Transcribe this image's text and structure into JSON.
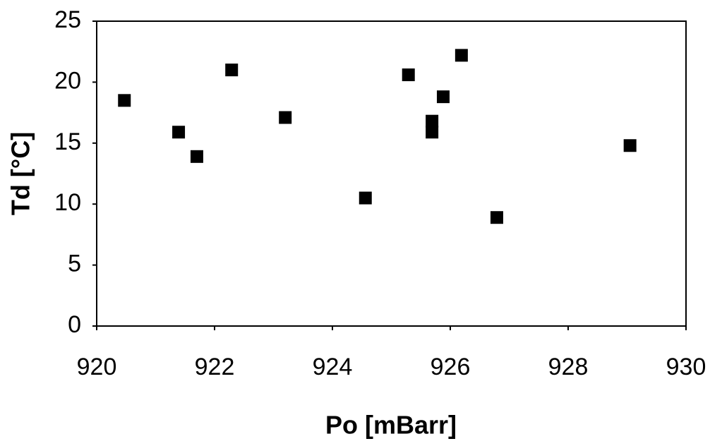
{
  "chart_data": {
    "type": "scatter",
    "x_label": "Po [mBarr]",
    "y_label": "Td [°C]",
    "series": [
      {
        "color": "#000000",
        "x": [
          920.47,
          921.39,
          921.7,
          922.29,
          923.2,
          924.56,
          925.29,
          925.69,
          925.69,
          925.88,
          926.19,
          926.79,
          929.05
        ],
        "values": [
          18.5,
          15.9,
          13.9,
          21.0,
          17.1,
          10.5,
          20.6,
          16.8,
          15.9,
          18.8,
          22.2,
          8.9,
          14.8
        ]
      }
    ],
    "xlim": [
      920,
      930
    ],
    "xticks": [
      920,
      922,
      924,
      926,
      928,
      930
    ],
    "ylim": [
      0,
      25
    ],
    "yticks": [
      0,
      5,
      10,
      15,
      20,
      25
    ]
  }
}
